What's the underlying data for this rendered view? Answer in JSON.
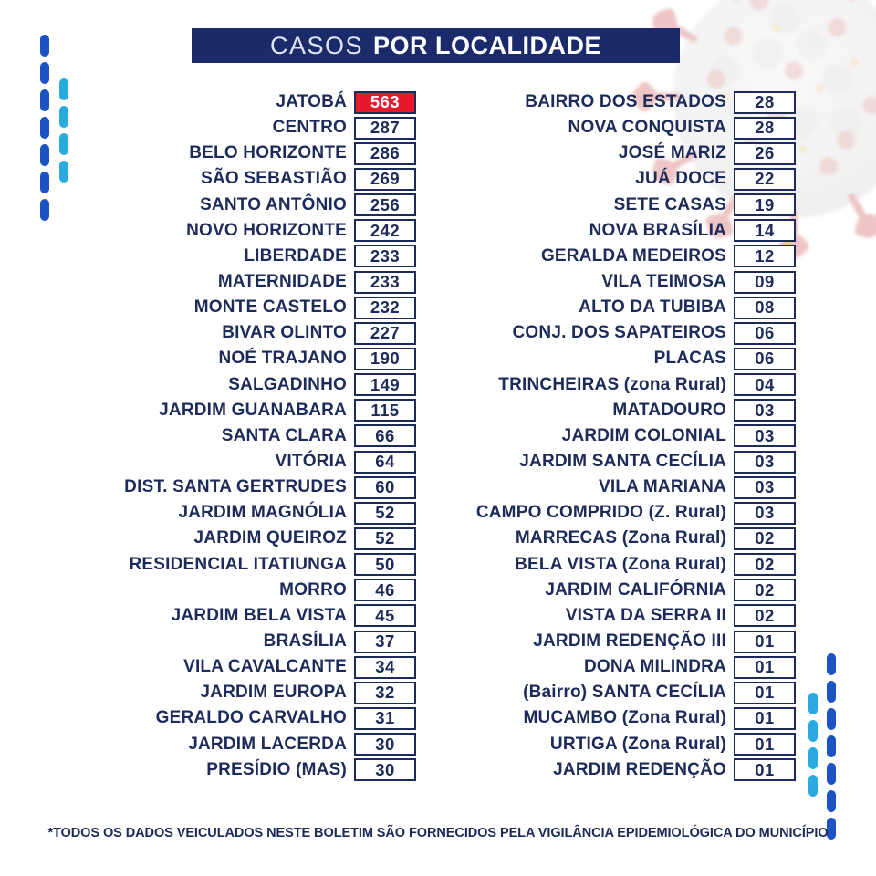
{
  "header": {
    "title_light": "CASOS",
    "title_bold": "POR LOCALIDADE"
  },
  "table": {
    "left_column": [
      {
        "name": "JATOBÁ",
        "cases": "563",
        "highlight": true
      },
      {
        "name": "CENTRO",
        "cases": "287"
      },
      {
        "name": "BELO HORIZONTE",
        "cases": "286"
      },
      {
        "name": "SÃO SEBASTIÃO",
        "cases": "269"
      },
      {
        "name": "SANTO ANTÔNIO",
        "cases": "256"
      },
      {
        "name": "NOVO HORIZONTE",
        "cases": "242"
      },
      {
        "name": "LIBERDADE",
        "cases": "233"
      },
      {
        "name": "MATERNIDADE",
        "cases": "233"
      },
      {
        "name": "MONTE CASTELO",
        "cases": "232"
      },
      {
        "name": "BIVAR OLINTO",
        "cases": "227"
      },
      {
        "name": "NOÉ TRAJANO",
        "cases": "190"
      },
      {
        "name": "SALGADINHO",
        "cases": "149"
      },
      {
        "name": "JARDIM GUANABARA",
        "cases": "115"
      },
      {
        "name": "SANTA CLARA",
        "cases": "66"
      },
      {
        "name": "VITÓRIA",
        "cases": "64"
      },
      {
        "name": "DIST. SANTA GERTRUDES",
        "cases": "60"
      },
      {
        "name": "JARDIM MAGNÓLIA",
        "cases": "52"
      },
      {
        "name": "JARDIM QUEIROZ",
        "cases": "52"
      },
      {
        "name": "RESIDENCIAL ITATIUNGA",
        "cases": "50"
      },
      {
        "name": "MORRO",
        "cases": "46"
      },
      {
        "name": "JARDIM BELA VISTA",
        "cases": "45"
      },
      {
        "name": "BRASÍLIA",
        "cases": "37"
      },
      {
        "name": "VILA CAVALCANTE",
        "cases": "34"
      },
      {
        "name": "JARDIM EUROPA",
        "cases": "32"
      },
      {
        "name": "GERALDO CARVALHO",
        "cases": "31"
      },
      {
        "name": "JARDIM LACERDA",
        "cases": "30"
      },
      {
        "name": "PRESÍDIO (MAS)",
        "cases": "30"
      }
    ],
    "right_column": [
      {
        "name": "BAIRRO DOS ESTADOS",
        "cases": "28"
      },
      {
        "name": "NOVA CONQUISTA",
        "cases": "28"
      },
      {
        "name": "JOSÉ MARIZ",
        "cases": "26"
      },
      {
        "name": "JUÁ DOCE",
        "cases": "22"
      },
      {
        "name": "SETE CASAS",
        "cases": "19"
      },
      {
        "name": "NOVA BRASÍLIA",
        "cases": "14"
      },
      {
        "name": "GERALDA MEDEIROS",
        "cases": "12"
      },
      {
        "name": "VILA TEIMOSA",
        "cases": "09"
      },
      {
        "name": "ALTO DA TUBIBA",
        "cases": "08"
      },
      {
        "name": "CONJ. DOS SAPATEIROS",
        "cases": "06"
      },
      {
        "name": "PLACAS",
        "cases": "06"
      },
      {
        "name": "TRINCHEIRAS (zona Rural)",
        "cases": "04"
      },
      {
        "name": "MATADOURO",
        "cases": "03"
      },
      {
        "name": "JARDIM COLONIAL",
        "cases": "03"
      },
      {
        "name": "JARDIM SANTA CECÍLIA",
        "cases": "03"
      },
      {
        "name": "VILA MARIANA",
        "cases": "03"
      },
      {
        "name": "CAMPO COMPRIDO (Z. Rural)",
        "cases": "03"
      },
      {
        "name": "MARRECAS (Zona Rural)",
        "cases": "02"
      },
      {
        "name": "BELA VISTA (Zona Rural)",
        "cases": "02"
      },
      {
        "name": "JARDIM CALIFÓRNIA",
        "cases": "02"
      },
      {
        "name": "VISTA DA SERRA II",
        "cases": "02"
      },
      {
        "name": "JARDIM REDENÇÃO III",
        "cases": "01"
      },
      {
        "name": "DONA MILINDRA",
        "cases": "01"
      },
      {
        "name": "(Bairro) SANTA CECÍLIA",
        "cases": "01"
      },
      {
        "name": "MUCAMBO (Zona Rural)",
        "cases": "01"
      },
      {
        "name": "URTIGA (Zona Rural)",
        "cases": "01"
      },
      {
        "name": "JARDIM REDENÇÃO",
        "cases": "01"
      }
    ]
  },
  "footer": {
    "note": "*TODOS OS DADOS VEICULADOS NESTE BOLETIM SÃO FORNECIDOS PELA VIGILÂNCIA EPIDEMIOLÓGICA DO MUNICÍPIO"
  },
  "colors": {
    "navy_text": "#1c2b5a",
    "title_bar": "#1b2a6b",
    "highlight_red": "#e8192d",
    "dash_dark_blue": "#1d52c4",
    "dash_light_blue": "#29abe2"
  },
  "icons": {
    "background_illustration": "coronavirus-icon",
    "decorations": "dashed-line-ornament"
  }
}
